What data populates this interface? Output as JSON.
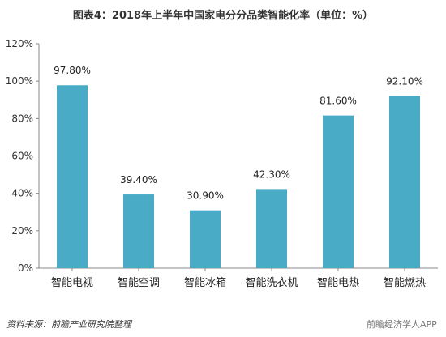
{
  "title": "图表4：2018年上半年中国家电分分品类智能化率（单位：%）",
  "source": "资料来源：前瞻产业研究院整理",
  "watermark_app": "前瞻经济学人APP",
  "colors": {
    "bar": "#4aabc6",
    "axis": "#888888",
    "grid": "#dcdcdc"
  },
  "chart_data": {
    "type": "bar",
    "title": "图表4：2018年上半年中国家电分分品类智能化率（单位：%）",
    "xlabel": "",
    "ylabel": "",
    "categories": [
      "智能电视",
      "智能空调",
      "智能冰箱",
      "智能洗衣机",
      "智能电热",
      "智能燃热"
    ],
    "values": [
      97.8,
      39.4,
      30.9,
      42.3,
      81.6,
      92.1
    ],
    "data_labels": [
      "97.80%",
      "39.40%",
      "30.90%",
      "42.30%",
      "81.60%",
      "92.10%"
    ],
    "ylim": [
      0,
      120
    ],
    "yticks": [
      0,
      20,
      40,
      60,
      80,
      100,
      120
    ],
    "ytick_labels": [
      "0%",
      "20%",
      "40%",
      "60%",
      "80%",
      "100%",
      "120%"
    ],
    "grid": false,
    "legend": "none"
  }
}
